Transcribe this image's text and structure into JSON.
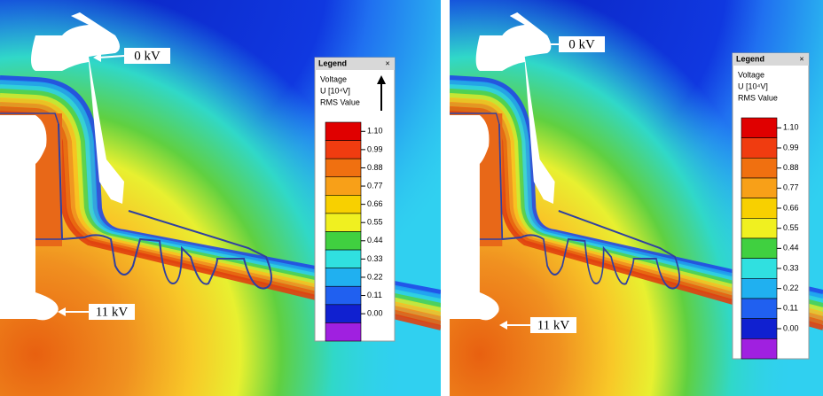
{
  "panels": [
    {
      "voltage_labels": [
        "0 kV",
        "11 kV"
      ],
      "legend": {
        "title": "Legend",
        "close": "×",
        "quantity": "Voltage",
        "unit": "U [10⁴V]",
        "kind": "RMS Value",
        "scale": [
          "1.10",
          "0.99",
          "0.88",
          "0.77",
          "0.66",
          "0.55",
          "0.44",
          "0.33",
          "0.22",
          "0.11",
          "0.00"
        ]
      }
    },
    {
      "voltage_labels": [
        "0 kV",
        "11 kV"
      ],
      "legend": {
        "title": "Legend",
        "close": "×",
        "quantity": "Voltage",
        "unit": "U [10⁴V]",
        "kind": "RMS Value",
        "scale": [
          "1.10",
          "0.99",
          "0.88",
          "0.77",
          "0.66",
          "0.55",
          "0.44",
          "0.33",
          "0.22",
          "0.11",
          "0.00"
        ]
      }
    }
  ]
}
